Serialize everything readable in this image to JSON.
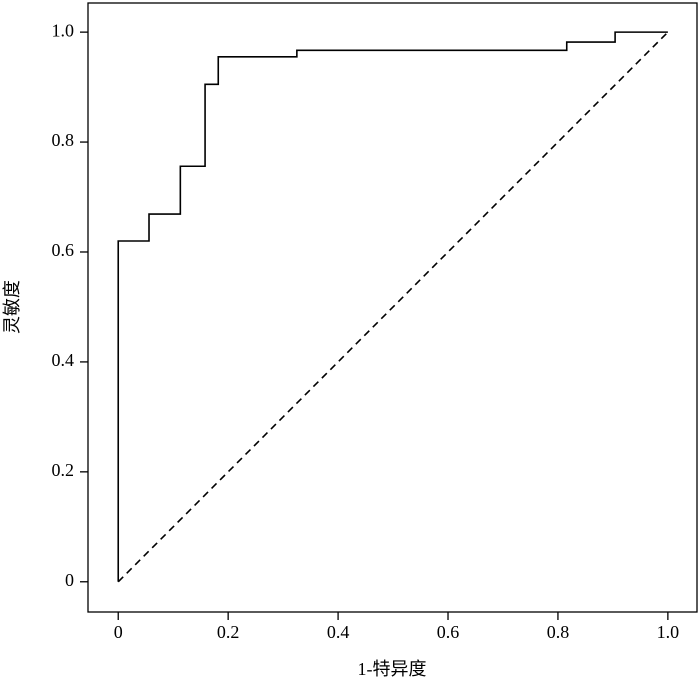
{
  "chart_data": {
    "type": "line",
    "xlabel": "1-特异度",
    "ylabel": "灵敏度",
    "xlim": [
      -0.055,
      1.053
    ],
    "ylim": [
      -0.055,
      1.053
    ],
    "xticks": [
      0,
      0.2,
      0.4,
      0.6,
      0.8,
      {
        "value": 1,
        "label": "1.0"
      }
    ],
    "yticks": [
      0,
      0.2,
      0.4,
      0.6,
      0.8,
      {
        "value": 1,
        "label": "1.0"
      }
    ],
    "series": [
      {
        "color": "#000000",
        "line_style": "solid",
        "x": [
          0,
          0,
          0.056,
          0.056,
          0.113,
          0.113,
          0.158,
          0.158,
          0.182,
          0.182,
          0.325,
          0.325,
          0.816,
          0.816,
          0.904,
          0.904,
          1.0
        ],
        "values": [
          0,
          0.62,
          0.62,
          0.669,
          0.669,
          0.756,
          0.756,
          0.905,
          0.905,
          0.955,
          0.955,
          0.967,
          0.967,
          0.982,
          0.982,
          1.0,
          1.0
        ]
      },
      {
        "color": "#000000",
        "line_style": "dashed",
        "x": [
          0,
          1
        ],
        "values": [
          0,
          1
        ]
      }
    ]
  }
}
